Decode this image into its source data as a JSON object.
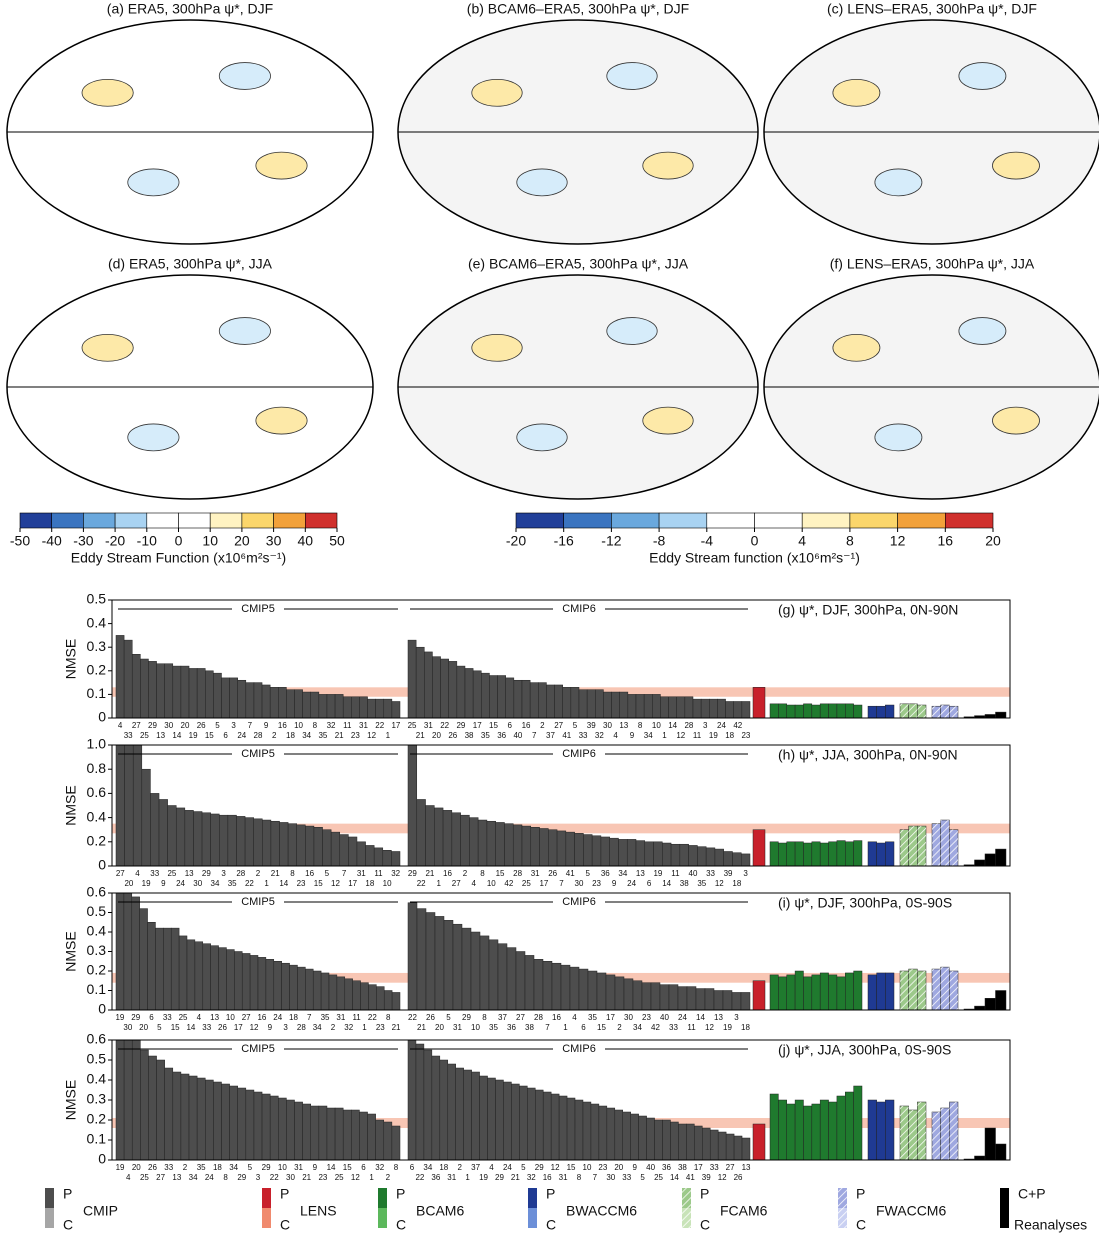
{
  "maps": {
    "panels": [
      "(a) ERA5, 300hPa ψ*, DJF",
      "(b) BCAM6–ERA5, 300hPa ψ*, DJF",
      "(c) LENS–ERA5, 300hPa ψ*, DJF",
      "(d) ERA5, 300hPa ψ*, JJA",
      "(e) BCAM6–ERA5, 300hPa ψ*, JJA",
      "(f) LENS–ERA5, 300hPa ψ*, JJA"
    ],
    "colorbars": [
      {
        "ticks": [
          -50,
          -40,
          -30,
          -20,
          -10,
          0,
          10,
          20,
          30,
          40,
          50
        ],
        "colors": [
          "#213f99",
          "#3a74c0",
          "#6aa8dd",
          "#a9d3f2",
          "#ffffff",
          "#ffffff",
          "#fff3c2",
          "#fbd66b",
          "#f2a13a",
          "#d0302d"
        ],
        "label": "Eddy Stream Function (x10⁶m²s⁻¹)"
      },
      {
        "ticks": [
          -20,
          -16,
          -12,
          -8,
          -4,
          0,
          4,
          8,
          12,
          16,
          20
        ],
        "colors": [
          "#213f99",
          "#3a74c0",
          "#6aa8dd",
          "#a9d3f2",
          "#ffffff",
          "#ffffff",
          "#fff3c2",
          "#fbd66b",
          "#f2a13a",
          "#d0302d"
        ],
        "label": "Eddy Stream function (x10⁶m²s⁻¹)"
      }
    ]
  },
  "chart_data": [
    {
      "type": "bar",
      "title": "(g) ψ*, DJF, 300hPa, 0N-90N",
      "y_label": "NMSE",
      "ylim": [
        0,
        0.5
      ],
      "yticks": [
        0,
        0.1,
        0.2,
        0.3,
        0.4,
        0.5
      ],
      "band": [
        0.09,
        0.13
      ],
      "series": [
        {
          "name": "CMIP5",
          "categories": [
            "4",
            "33",
            "27",
            "25",
            "29",
            "13",
            "30",
            "14",
            "20",
            "19",
            "26",
            "15",
            "5",
            "6",
            "3",
            "24",
            "7",
            "28",
            "9",
            "2",
            "16",
            "18",
            "10",
            "34",
            "8",
            "35",
            "32",
            "21",
            "11",
            "23",
            "31",
            "12",
            "22",
            "1",
            "17"
          ],
          "values": [
            0.35,
            0.33,
            0.27,
            0.25,
            0.24,
            0.23,
            0.23,
            0.22,
            0.22,
            0.21,
            0.21,
            0.2,
            0.19,
            0.17,
            0.17,
            0.16,
            0.15,
            0.15,
            0.14,
            0.13,
            0.13,
            0.12,
            0.12,
            0.11,
            0.11,
            0.1,
            0.1,
            0.1,
            0.09,
            0.09,
            0.09,
            0.08,
            0.08,
            0.08,
            0.07
          ]
        },
        {
          "name": "CMIP6",
          "categories": [
            "25",
            "21",
            "31",
            "20",
            "22",
            "26",
            "29",
            "38",
            "17",
            "35",
            "15",
            "36",
            "6",
            "40",
            "16",
            "7",
            "2",
            "37",
            "27",
            "41",
            "5",
            "33",
            "39",
            "32",
            "30",
            "4",
            "13",
            "9",
            "8",
            "34",
            "10",
            "1",
            "14",
            "12",
            "28",
            "11",
            "3",
            "19",
            "24",
            "18",
            "42",
            "23"
          ],
          "values": [
            0.33,
            0.3,
            0.28,
            0.26,
            0.25,
            0.24,
            0.22,
            0.21,
            0.2,
            0.19,
            0.18,
            0.18,
            0.17,
            0.16,
            0.16,
            0.15,
            0.15,
            0.14,
            0.14,
            0.13,
            0.13,
            0.12,
            0.12,
            0.12,
            0.11,
            0.11,
            0.11,
            0.1,
            0.1,
            0.1,
            0.1,
            0.09,
            0.09,
            0.09,
            0.09,
            0.08,
            0.08,
            0.08,
            0.08,
            0.07,
            0.07,
            0.07
          ]
        }
      ],
      "ensembles": [
        [
          0.13
        ],
        [
          0.06,
          0.06,
          0.055,
          0.055,
          0.06,
          0.055,
          0.06,
          0.06,
          0.06,
          0.06,
          0.055
        ],
        [
          0.05,
          0.05,
          0.055
        ],
        [
          0.06,
          0.06,
          0.055
        ],
        [
          0.05,
          0.055,
          0.05
        ],
        [
          0.005,
          0.01,
          0.015,
          0.025
        ]
      ]
    },
    {
      "type": "bar",
      "title": "(h) ψ*, JJA, 300hPa, 0N-90N",
      "y_label": "NMSE",
      "ylim": [
        0,
        1
      ],
      "yticks": [
        0,
        0.2,
        0.4,
        0.6,
        0.8,
        {
          "value": 1,
          "label": "1.0"
        }
      ],
      "band": [
        0.27,
        0.35
      ],
      "series": [
        {
          "name": "CMIP5",
          "categories": [
            "27",
            "20",
            "4",
            "19",
            "33",
            "9",
            "25",
            "24",
            "13",
            "30",
            "29",
            "34",
            "3",
            "35",
            "28",
            "22",
            "2",
            "1",
            "21",
            "14",
            "8",
            "23",
            "16",
            "15",
            "5",
            "12",
            "7",
            "17",
            "31",
            "18",
            "11",
            "10",
            "32"
          ],
          "values": [
            1.0,
            1.0,
            1.0,
            0.8,
            0.6,
            0.55,
            0.5,
            0.48,
            0.46,
            0.45,
            0.44,
            0.43,
            0.42,
            0.42,
            0.41,
            0.4,
            0.39,
            0.38,
            0.37,
            0.36,
            0.35,
            0.34,
            0.33,
            0.32,
            0.3,
            0.28,
            0.26,
            0.24,
            0.2,
            0.17,
            0.15,
            0.13,
            0.12
          ]
        },
        {
          "name": "CMIP6",
          "categories": [
            "29",
            "22",
            "21",
            "1",
            "16",
            "27",
            "2",
            "4",
            "8",
            "10",
            "15",
            "42",
            "28",
            "25",
            "31",
            "17",
            "26",
            "7",
            "41",
            "30",
            "5",
            "23",
            "36",
            "9",
            "34",
            "24",
            "13",
            "6",
            "19",
            "14",
            "11",
            "38",
            "40",
            "35",
            "33",
            "12",
            "39",
            "18",
            "3"
          ],
          "values": [
            1.0,
            0.55,
            0.5,
            0.48,
            0.46,
            0.44,
            0.42,
            0.4,
            0.38,
            0.37,
            0.36,
            0.35,
            0.34,
            0.33,
            0.32,
            0.31,
            0.3,
            0.29,
            0.28,
            0.27,
            0.26,
            0.25,
            0.24,
            0.23,
            0.22,
            0.22,
            0.21,
            0.2,
            0.2,
            0.19,
            0.18,
            0.18,
            0.17,
            0.16,
            0.15,
            0.14,
            0.12,
            0.11,
            0.1
          ]
        }
      ],
      "ensembles": [
        [
          0.3
        ],
        [
          0.2,
          0.19,
          0.2,
          0.2,
          0.19,
          0.2,
          0.19,
          0.2,
          0.21,
          0.2,
          0.21
        ],
        [
          0.2,
          0.19,
          0.2
        ],
        [
          0.3,
          0.33,
          0.33
        ],
        [
          0.35,
          0.38,
          0.3
        ],
        [
          0.01,
          0.05,
          0.1,
          0.14
        ]
      ]
    },
    {
      "type": "bar",
      "title": "(i) ψ*, DJF, 300hPa, 0S-90S",
      "y_label": "NMSE",
      "ylim": [
        0,
        0.6
      ],
      "yticks": [
        0,
        0.1,
        0.2,
        0.3,
        0.4,
        0.5,
        0.6
      ],
      "band": [
        0.14,
        0.19
      ],
      "series": [
        {
          "name": "CMIP5",
          "categories": [
            "19",
            "30",
            "29",
            "20",
            "6",
            "5",
            "33",
            "15",
            "25",
            "14",
            "4",
            "33",
            "13",
            "26",
            "10",
            "17",
            "27",
            "12",
            "16",
            "9",
            "24",
            "3",
            "18",
            "28",
            "7",
            "34",
            "35",
            "2",
            "31",
            "32",
            "11",
            "1",
            "22",
            "23",
            "8",
            "21"
          ],
          "values": [
            0.6,
            0.6,
            0.58,
            0.52,
            0.45,
            0.42,
            0.42,
            0.42,
            0.38,
            0.36,
            0.35,
            0.34,
            0.33,
            0.32,
            0.31,
            0.3,
            0.29,
            0.28,
            0.27,
            0.26,
            0.25,
            0.24,
            0.23,
            0.22,
            0.21,
            0.2,
            0.19,
            0.18,
            0.17,
            0.16,
            0.15,
            0.14,
            0.13,
            0.12,
            0.1,
            0.09
          ]
        },
        {
          "name": "CMIP6",
          "categories": [
            "22",
            "21",
            "26",
            "20",
            "5",
            "31",
            "29",
            "10",
            "8",
            "35",
            "37",
            "36",
            "27",
            "38",
            "28",
            "7",
            "16",
            "1",
            "4",
            "6",
            "35",
            "15",
            "17",
            "2",
            "30",
            "34",
            "23",
            "42",
            "40",
            "33",
            "24",
            "11",
            "14",
            "12",
            "13",
            "19",
            "3",
            "18"
          ],
          "values": [
            0.55,
            0.52,
            0.5,
            0.48,
            0.46,
            0.44,
            0.42,
            0.4,
            0.38,
            0.36,
            0.34,
            0.32,
            0.3,
            0.28,
            0.26,
            0.25,
            0.24,
            0.23,
            0.22,
            0.21,
            0.2,
            0.19,
            0.18,
            0.17,
            0.16,
            0.15,
            0.14,
            0.14,
            0.13,
            0.13,
            0.12,
            0.12,
            0.11,
            0.11,
            0.1,
            0.1,
            0.09,
            0.09
          ]
        }
      ],
      "ensembles": [
        [
          0.15
        ],
        [
          0.18,
          0.17,
          0.18,
          0.2,
          0.17,
          0.18,
          0.19,
          0.18,
          0.17,
          0.19,
          0.2
        ],
        [
          0.18,
          0.19,
          0.19
        ],
        [
          0.2,
          0.21,
          0.2
        ],
        [
          0.21,
          0.22,
          0.2
        ],
        [
          0.005,
          0.02,
          0.06,
          0.1
        ]
      ]
    },
    {
      "type": "bar",
      "title": "(j) ψ*, JJA, 300hPa, 0S-90S",
      "y_label": "NMSE",
      "ylim": [
        0,
        0.6
      ],
      "yticks": [
        0,
        0.1,
        0.2,
        0.3,
        0.4,
        0.5,
        0.6
      ],
      "band": [
        0.16,
        0.21
      ],
      "series": [
        {
          "name": "CMIP5",
          "categories": [
            "19",
            "4",
            "20",
            "25",
            "26",
            "27",
            "33",
            "13",
            "2",
            "34",
            "35",
            "24",
            "18",
            "8",
            "34",
            "29",
            "5",
            "3",
            "29",
            "22",
            "10",
            "30",
            "31",
            "21",
            "9",
            "23",
            "14",
            "25",
            "15",
            "12",
            "6",
            "1",
            "32",
            "2",
            "8"
          ],
          "values": [
            0.6,
            0.6,
            0.6,
            0.55,
            0.52,
            0.5,
            0.46,
            0.44,
            0.43,
            0.42,
            0.41,
            0.4,
            0.39,
            0.38,
            0.37,
            0.36,
            0.35,
            0.34,
            0.33,
            0.32,
            0.31,
            0.3,
            0.29,
            0.28,
            0.27,
            0.27,
            0.26,
            0.26,
            0.25,
            0.25,
            0.24,
            0.23,
            0.2,
            0.19,
            0.17
          ]
        },
        {
          "name": "CMIP6",
          "categories": [
            "6",
            "22",
            "34",
            "36",
            "18",
            "31",
            "2",
            "1",
            "37",
            "19",
            "4",
            "29",
            "24",
            "21",
            "5",
            "32",
            "29",
            "16",
            "12",
            "31",
            "15",
            "8",
            "10",
            "7",
            "23",
            "30",
            "20",
            "33",
            "9",
            "5",
            "40",
            "25",
            "36",
            "14",
            "38",
            "41",
            "17",
            "39",
            "33",
            "12",
            "27",
            "26",
            "13"
          ],
          "values": [
            0.6,
            0.58,
            0.55,
            0.52,
            0.5,
            0.48,
            0.46,
            0.45,
            0.44,
            0.42,
            0.41,
            0.4,
            0.39,
            0.38,
            0.37,
            0.36,
            0.35,
            0.34,
            0.33,
            0.32,
            0.31,
            0.3,
            0.29,
            0.28,
            0.27,
            0.26,
            0.25,
            0.24,
            0.23,
            0.22,
            0.21,
            0.2,
            0.2,
            0.19,
            0.18,
            0.18,
            0.17,
            0.16,
            0.15,
            0.14,
            0.13,
            0.12,
            0.11
          ]
        }
      ],
      "ensembles": [
        [
          0.18
        ],
        [
          0.33,
          0.3,
          0.28,
          0.3,
          0.27,
          0.28,
          0.3,
          0.29,
          0.32,
          0.34,
          0.37
        ],
        [
          0.3,
          0.29,
          0.3
        ],
        [
          0.27,
          0.25,
          0.29
        ],
        [
          0.24,
          0.26,
          0.29
        ],
        [
          0.005,
          0.02,
          0.16,
          0.08
        ]
      ]
    }
  ],
  "legend": [
    {
      "top": "P",
      "bottom": "C",
      "name": "CMIP",
      "colors": [
        "#4d4d4d",
        "#a6a6a6"
      ]
    },
    {
      "top": "P",
      "bottom": "C",
      "name": "LENS",
      "colors": [
        "#c8202b",
        "#f08a6e"
      ]
    },
    {
      "top": "P",
      "bottom": "C",
      "name": "BCAM6",
      "colors": [
        "#1f7a2e",
        "#5cb85c"
      ]
    },
    {
      "top": "P",
      "bottom": "C",
      "name": "BWACCM6",
      "colors": [
        "#1f3a93",
        "#6c8fd8"
      ]
    },
    {
      "top": "P",
      "bottom": "C",
      "name": "FCAM6",
      "colors": [
        "#9cc98a",
        "#c8e3b8"
      ],
      "hatch": true
    },
    {
      "top": "P",
      "bottom": "C",
      "name": "FWACCM6",
      "colors": [
        "#9fa8e0",
        "#c9d0f2"
      ],
      "hatch": true
    },
    {
      "top": "C+P",
      "name": "Reanalyses",
      "colors": [
        "#000000",
        "#000000"
      ]
    }
  ]
}
